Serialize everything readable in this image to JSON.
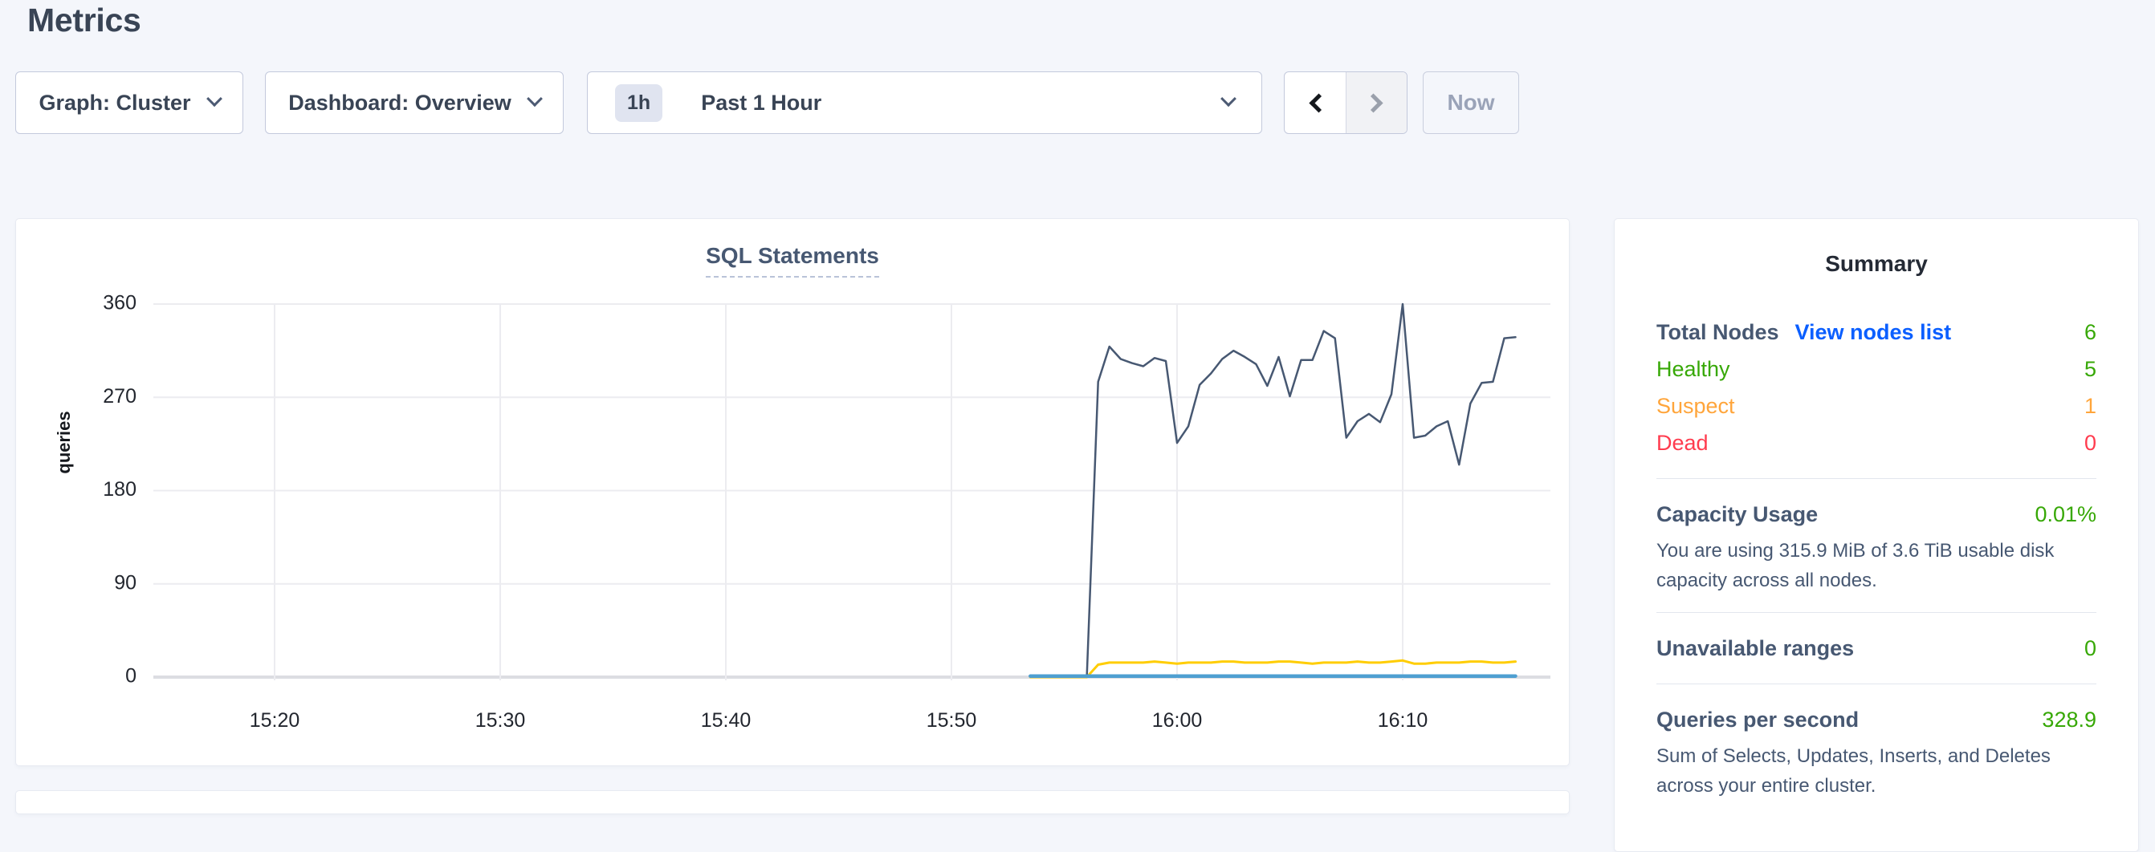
{
  "page": {
    "title": "Metrics"
  },
  "controls": {
    "graph_label": "Graph: Cluster",
    "dashboard_label": "Dashboard: Overview",
    "time_badge": "1h",
    "time_label": "Past 1 Hour",
    "now_label": "Now"
  },
  "colors": {
    "link_blue": "#0b5fff",
    "healthy_green": "#37a806",
    "suspect_orange": "#ffa53b",
    "dead_red": "#ff3b4e",
    "series_slate": "#475872",
    "series_yellow": "#ffcd02",
    "series_blue": "#4e9fd1"
  },
  "chart_data": {
    "type": "line",
    "title": "SQL Statements",
    "ylabel": "queries",
    "yticks": [
      0,
      90,
      180,
      270,
      360
    ],
    "ylim": [
      0,
      365
    ],
    "grid": true,
    "legend_position": "none",
    "xticks": [
      {
        "minute": 20,
        "label": "15:20"
      },
      {
        "minute": 30,
        "label": "15:30"
      },
      {
        "minute": 40,
        "label": "15:40"
      },
      {
        "minute": 50,
        "label": "15:50"
      },
      {
        "minute": 60,
        "label": "16:00"
      },
      {
        "minute": 70,
        "label": "16:10"
      }
    ],
    "x_axis_note": "minutes after 15:00, domain 14.6 to 76",
    "xlim": [
      14.6,
      76
    ],
    "series": [
      {
        "name": "series-dark-slate",
        "color": "#475872",
        "width": 2.5,
        "t_start": 53.5,
        "t_step": 0.5,
        "values": [
          0,
          0,
          0,
          0,
          0,
          0,
          285,
          319,
          307,
          303,
          300,
          308,
          305,
          226,
          242,
          282,
          293,
          307,
          315,
          309,
          302,
          281,
          309,
          271,
          306,
          306,
          334,
          327,
          231,
          247,
          254,
          246,
          273,
          360,
          231,
          233,
          242,
          247,
          205,
          264,
          284,
          285,
          327,
          328
        ]
      },
      {
        "name": "series-yellow",
        "color": "#ffcd02",
        "width": 3,
        "t_start": 53.5,
        "t_step": 0.5,
        "values": [
          0,
          0,
          0,
          0,
          0,
          0,
          12,
          14,
          14,
          14,
          14,
          15,
          14,
          13,
          14,
          14,
          14,
          15,
          15,
          14,
          14,
          14,
          15,
          15,
          14,
          13,
          14,
          14,
          14,
          15,
          14,
          14,
          15,
          16,
          13,
          13,
          14,
          14,
          14,
          15,
          15,
          14,
          14,
          15
        ]
      },
      {
        "name": "series-blue",
        "color": "#4e9fd1",
        "width": 4.5,
        "t_start": 53.5,
        "t_step": 0.5,
        "values": [
          1,
          1,
          1,
          1,
          1,
          1,
          1,
          1,
          1,
          1,
          1,
          1,
          1,
          1,
          1,
          1,
          1,
          1,
          1,
          1,
          1,
          1,
          1,
          1,
          1,
          1,
          1,
          1,
          1,
          1,
          1,
          1,
          1,
          1,
          1,
          1,
          1,
          1,
          1,
          1,
          1,
          1,
          1,
          1
        ]
      }
    ]
  },
  "summary": {
    "title": "Summary",
    "nodes": {
      "label": "Total Nodes",
      "link": "View nodes list",
      "value": "6",
      "status_rows": [
        {
          "label": "Healthy",
          "value": "5"
        },
        {
          "label": "Suspect",
          "value": "1"
        },
        {
          "label": "Dead",
          "value": "0"
        }
      ]
    },
    "capacity": {
      "label": "Capacity Usage",
      "value": "0.01%",
      "description": "You are using 315.9 MiB of 3.6 TiB usable disk capacity across all nodes."
    },
    "unavailable": {
      "label": "Unavailable ranges",
      "value": "0"
    },
    "qps": {
      "label": "Queries per second",
      "value": "328.9",
      "description": "Sum of Selects, Updates, Inserts, and Deletes across your entire cluster."
    }
  }
}
